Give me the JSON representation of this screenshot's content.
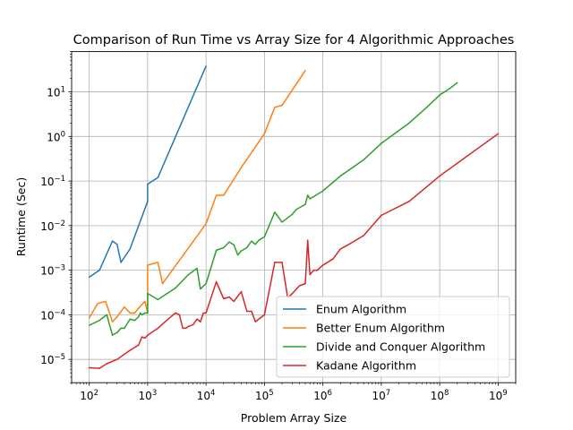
{
  "chart_data": {
    "type": "line",
    "title": "Comparison of Run Time vs Array Size for 4 Algorithmic Approaches",
    "xlabel": "Problem Array Size",
    "ylabel": "Runtime (Sec)",
    "xscale": "log",
    "yscale": "log",
    "xlim": [
      50,
      2000000000
    ],
    "ylim": [
      3e-06,
      80
    ],
    "grid": true,
    "legend_position": "lower-right",
    "x_ticks": [
      {
        "base": "10",
        "exp": "2",
        "value": 100
      },
      {
        "base": "10",
        "exp": "3",
        "value": 1000
      },
      {
        "base": "10",
        "exp": "4",
        "value": 10000
      },
      {
        "base": "10",
        "exp": "5",
        "value": 100000
      },
      {
        "base": "10",
        "exp": "6",
        "value": 1000000
      },
      {
        "base": "10",
        "exp": "7",
        "value": 10000000
      },
      {
        "base": "10",
        "exp": "8",
        "value": 100000000
      },
      {
        "base": "10",
        "exp": "9",
        "value": 1000000000
      }
    ],
    "y_ticks": [
      {
        "base": "10",
        "exp": "−5",
        "value": 1e-05
      },
      {
        "base": "10",
        "exp": "−4",
        "value": 0.0001
      },
      {
        "base": "10",
        "exp": "−3",
        "value": 0.001
      },
      {
        "base": "10",
        "exp": "−2",
        "value": 0.01
      },
      {
        "base": "10",
        "exp": "−1",
        "value": 0.1
      },
      {
        "base": "10",
        "exp": "0",
        "value": 1
      },
      {
        "base": "10",
        "exp": "1",
        "value": 10
      }
    ],
    "series": [
      {
        "name": "Enum Algorithm",
        "color": "#1f77b4",
        "x": [
          100,
          150,
          250,
          300,
          350,
          500,
          1000,
          1000,
          1500,
          10000
        ],
        "y": [
          0.0007,
          0.001,
          0.0045,
          0.0038,
          0.0015,
          0.003,
          0.035,
          0.085,
          0.12,
          38
        ]
      },
      {
        "name": "Better Enum Algorithm",
        "color": "#ff7f0e",
        "x": [
          100,
          140,
          190,
          250,
          300,
          400,
          500,
          600,
          700,
          800,
          900,
          1000,
          1000,
          1500,
          1800,
          10000,
          15000,
          20000,
          40000,
          100000,
          150000,
          200000,
          500000
        ],
        "y": [
          8.5e-05,
          0.00018,
          0.0002,
          7e-05,
          9e-05,
          0.00015,
          0.00011,
          0.00011,
          0.00014,
          0.00017,
          0.0002,
          0.00011,
          0.0013,
          0.0015,
          0.0005,
          0.011,
          0.048,
          0.048,
          0.2,
          1.15,
          4.5,
          5,
          30
        ]
      },
      {
        "name": "Divide and Conquer Algorithm",
        "color": "#2ca02c",
        "x": [
          100,
          150,
          200,
          250,
          300,
          350,
          400,
          500,
          600,
          700,
          750,
          800,
          900,
          1000,
          1000,
          1500,
          3000,
          5000,
          7000,
          8000,
          10000,
          15000,
          20000,
          25000,
          30000,
          35000,
          40000,
          50000,
          60000,
          70000,
          80000,
          100000,
          150000,
          200000,
          300000,
          350000,
          500000,
          550000,
          600000,
          700000,
          1000000,
          2000000,
          5000000,
          10000000,
          30000000,
          60000000,
          100000000,
          150000000,
          200000000
        ],
        "y": [
          5.8e-05,
          7.5e-05,
          0.0001,
          3.5e-05,
          4e-05,
          5e-05,
          5e-05,
          8e-05,
          7.5e-05,
          9e-05,
          0.00011,
          0.0001,
          0.00011,
          0.00011,
          0.0003,
          0.00022,
          0.0004,
          0.0008,
          0.0011,
          0.00038,
          0.0005,
          0.0028,
          0.0032,
          0.0043,
          0.0037,
          0.0022,
          0.0027,
          0.0032,
          0.0045,
          0.0038,
          0.0047,
          0.0056,
          0.02,
          0.012,
          0.018,
          0.023,
          0.03,
          0.048,
          0.04,
          0.045,
          0.06,
          0.13,
          0.3,
          0.7,
          2,
          4.5,
          8.5,
          12,
          16
        ]
      },
      {
        "name": "Kadane Algorithm",
        "color": "#d62728",
        "x": [
          100,
          150,
          200,
          300,
          500,
          700,
          800,
          900,
          1000,
          1500,
          2000,
          3000,
          3500,
          4000,
          4500,
          5000,
          6000,
          7000,
          8000,
          9000,
          10000,
          15000,
          20000,
          25000,
          30000,
          40000,
          50000,
          60000,
          70000,
          100000,
          150000,
          200000,
          250000,
          300000,
          400000,
          500000,
          550000,
          600000,
          700000,
          800000,
          1000000,
          1500000,
          2000000,
          3000000,
          5000000,
          10000000,
          30000000,
          100000000,
          1000000000
        ],
        "y": [
          6.5e-06,
          6.3e-06,
          8e-06,
          1e-05,
          1.6e-05,
          2.1e-05,
          3.2e-05,
          3e-05,
          3.5e-05,
          5e-05,
          7e-05,
          0.00011,
          0.0001,
          5e-05,
          5e-05,
          5.5e-05,
          6e-05,
          8e-05,
          7e-05,
          0.00011,
          0.00011,
          0.00055,
          0.00023,
          0.00025,
          0.0002,
          0.00033,
          0.00012,
          0.00012,
          7e-05,
          0.0001,
          0.0015,
          0.0015,
          0.00024,
          0.0003,
          0.00045,
          0.0005,
          0.0047,
          0.0008,
          0.001,
          0.001,
          0.0013,
          0.0018,
          0.003,
          0.004,
          0.006,
          0.017,
          0.035,
          0.13,
          1.15
        ]
      }
    ]
  }
}
